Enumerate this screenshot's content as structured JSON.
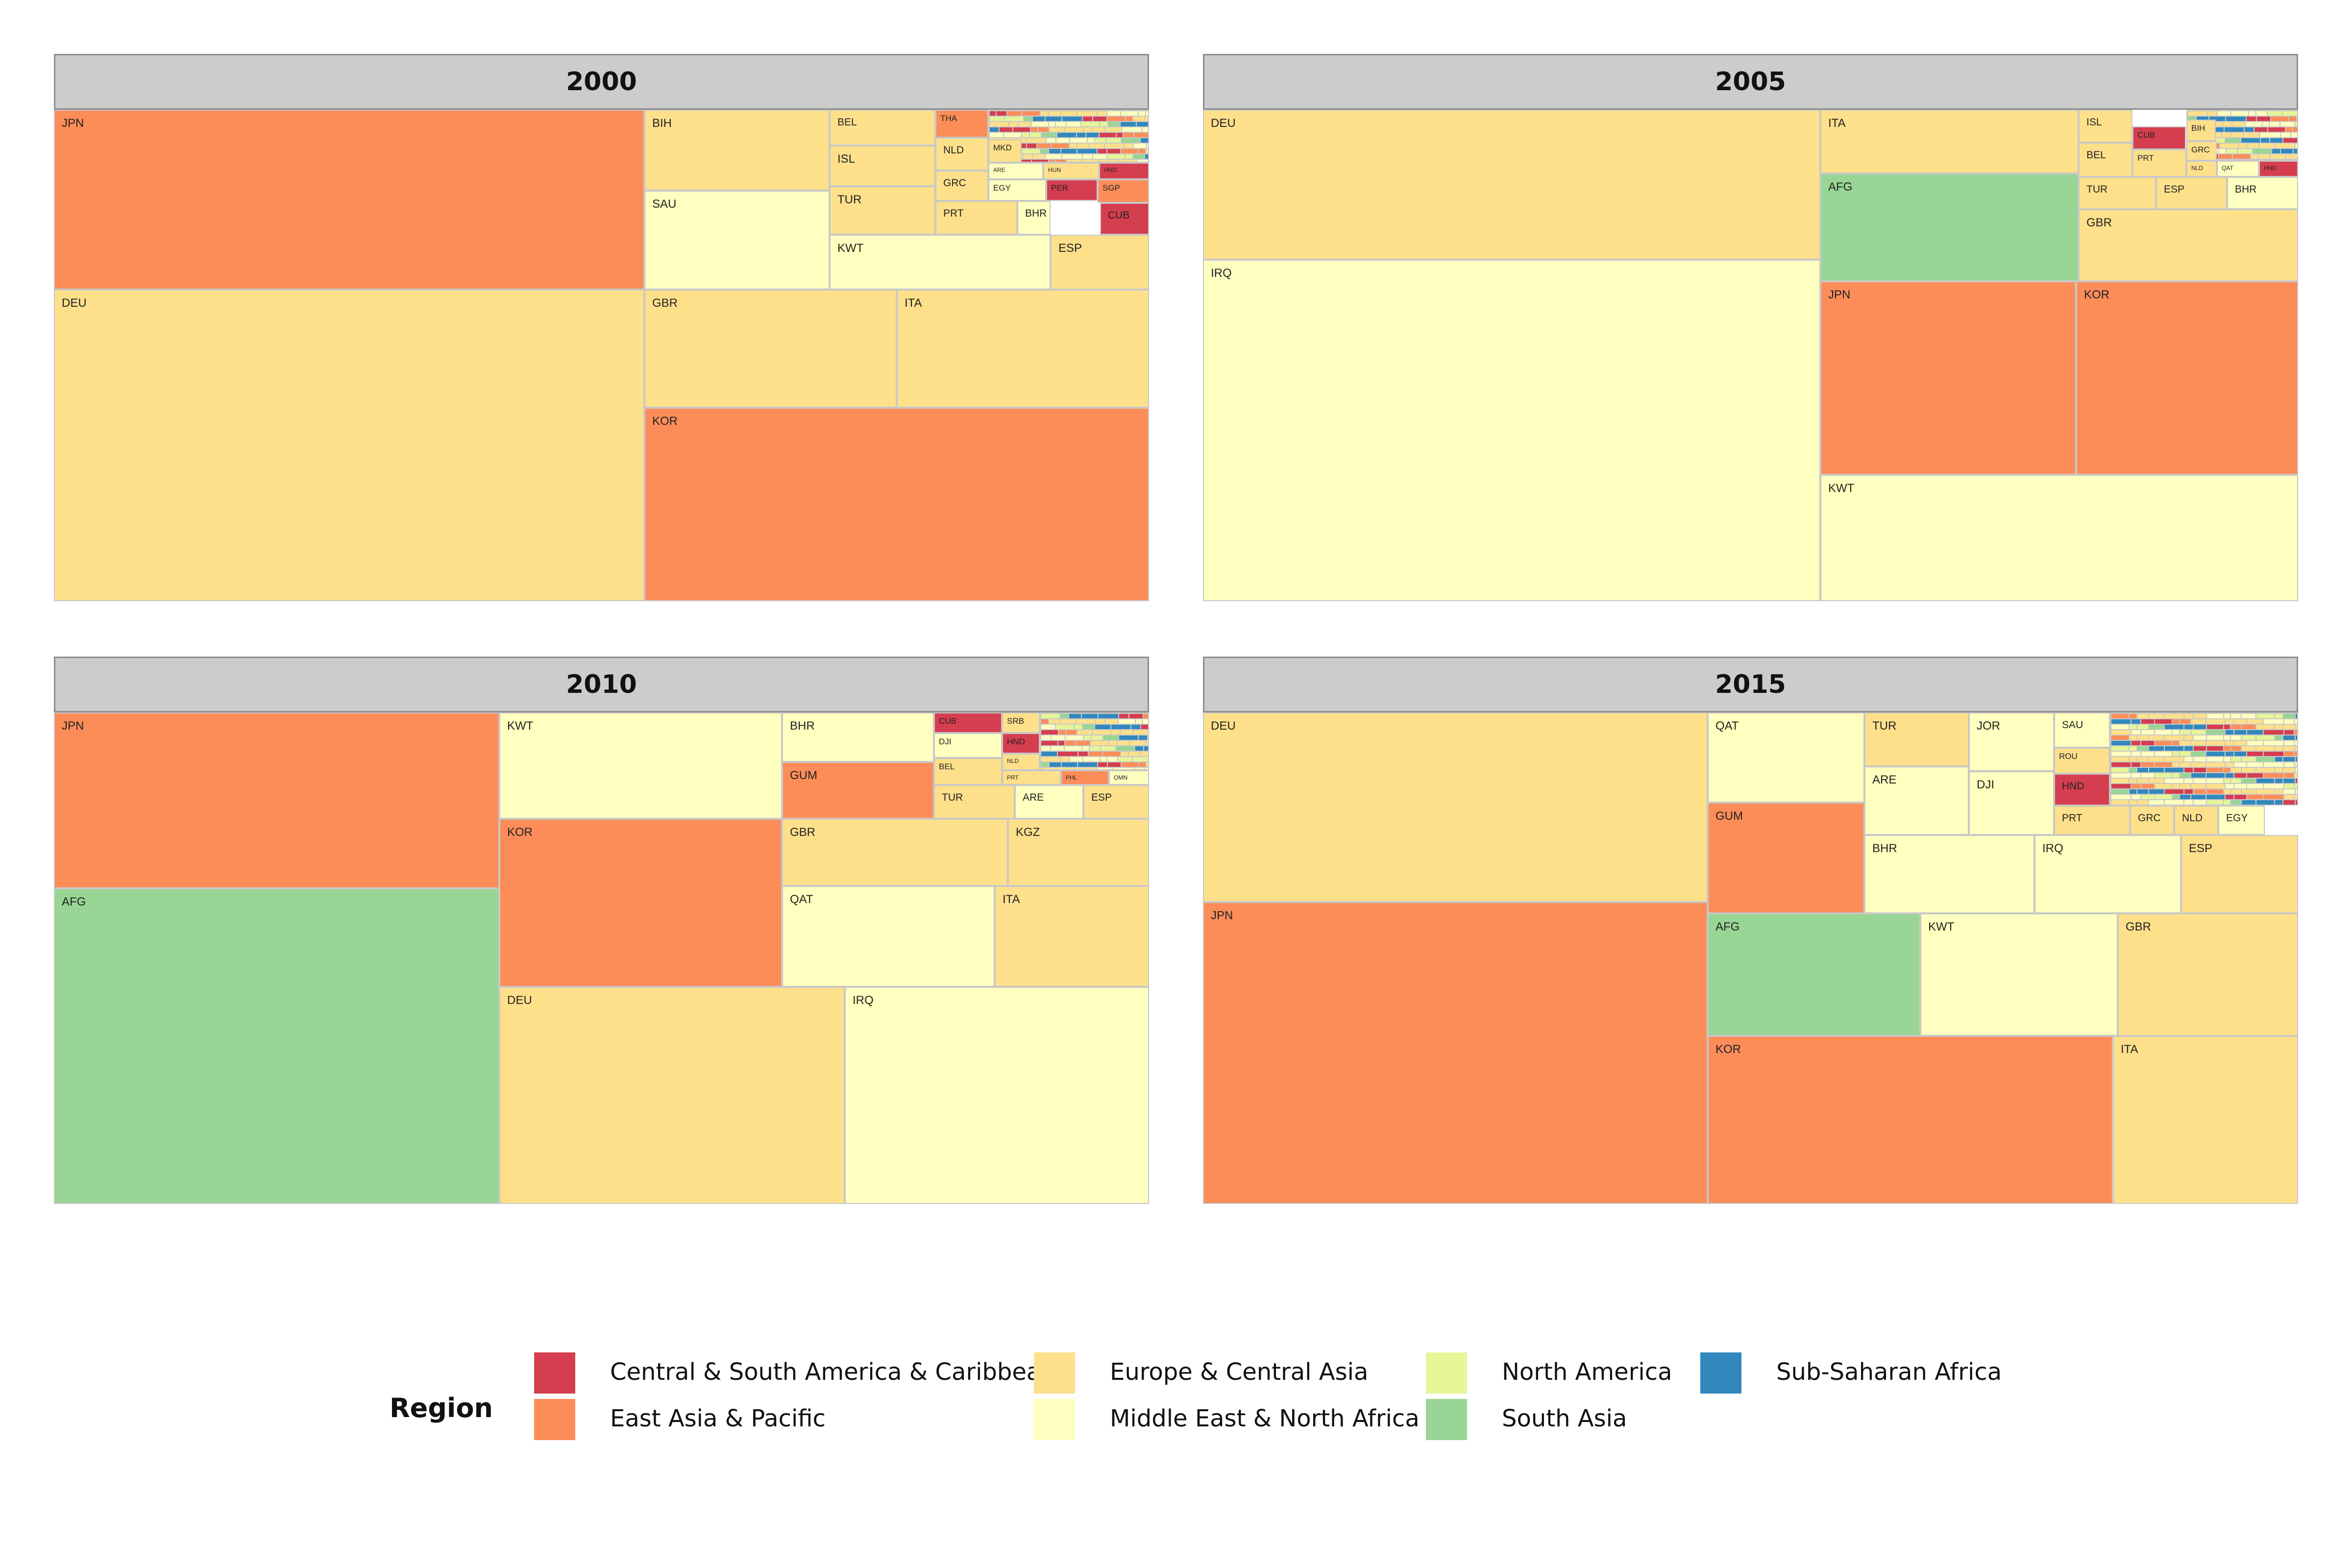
{
  "chart_data": {
    "type": "treemap",
    "legend": {
      "title": "Region",
      "position": "bottom",
      "entries": [
        {
          "region": "Central & South America & Caribbean",
          "color": "#d53e4f"
        },
        {
          "region": "East Asia & Pacific",
          "color": "#fc8d59"
        },
        {
          "region": "Europe & Central Asia",
          "color": "#fee08b"
        },
        {
          "region": "Middle East & North Africa",
          "color": "#ffffbf"
        },
        {
          "region": "North America",
          "color": "#e6f598"
        },
        {
          "region": "South Asia",
          "color": "#99d594"
        },
        {
          "region": "Sub-Saharan Africa",
          "color": "#3288bd"
        }
      ]
    },
    "panels": [
      {
        "year": "2000",
        "tiles": [
          {
            "country": "JPN",
            "region": "East Asia & Pacific",
            "share": 0.197
          },
          {
            "country": "DEU",
            "region": "Europe & Central Asia",
            "share": 0.341
          },
          {
            "country": "BIH",
            "region": "Europe & Central Asia",
            "share": 0.028
          },
          {
            "country": "SAU",
            "region": "Middle East & North Africa",
            "share": 0.035
          },
          {
            "country": "BEL",
            "region": "Europe & Central Asia",
            "share": 0.012
          },
          {
            "country": "ISL",
            "region": "Europe & Central Asia",
            "share": 0.012
          },
          {
            "country": "TUR",
            "region": "Europe & Central Asia",
            "share": 0.013
          },
          {
            "country": "KWT",
            "region": "Middle East & North Africa",
            "share": 0.018
          },
          {
            "country": "THA",
            "region": "East Asia & Pacific",
            "share": 0.003
          },
          {
            "country": "NLD",
            "region": "Europe & Central Asia",
            "share": 0.004
          },
          {
            "country": "GRC",
            "region": "Europe & Central Asia",
            "share": 0.004
          },
          {
            "country": "PRT",
            "region": "Europe & Central Asia",
            "share": 0.004
          },
          {
            "country": "BHR",
            "region": "Middle East & North Africa",
            "share": 0.004
          },
          {
            "country": "ESP",
            "region": "Europe & Central Asia",
            "share": 0.008
          },
          {
            "country": "CUB",
            "region": "Central & South America & Caribbean",
            "share": 0.004
          },
          {
            "country": "MKD",
            "region": "Europe & Central Asia",
            "share": 0.002
          },
          {
            "country": "ARE",
            "region": "Middle East & North Africa",
            "share": 0.001
          },
          {
            "country": "HUN",
            "region": "Europe & Central Asia",
            "share": 0.001
          },
          {
            "country": "HND",
            "region": "Central & South America & Caribbean",
            "share": 0.001
          },
          {
            "country": "EGY",
            "region": "Middle East & North Africa",
            "share": 0.002
          },
          {
            "country": "PER",
            "region": "Central & South America & Caribbean",
            "share": 0.002
          },
          {
            "country": "SGP",
            "region": "East Asia & Pacific",
            "share": 0.002
          },
          {
            "country": "GBR",
            "region": "Europe & Central Asia",
            "share": 0.058
          },
          {
            "country": "ITA",
            "region": "Europe & Central Asia",
            "share": 0.058
          },
          {
            "country": "KOR",
            "region": "East Asia & Pacific",
            "share": 0.154
          }
        ]
      },
      {
        "year": "2005",
        "tiles": [
          {
            "country": "DEU",
            "region": "Europe & Central Asia",
            "share": 0.175
          },
          {
            "country": "IRQ",
            "region": "Middle East & North Africa",
            "share": 0.398
          },
          {
            "country": "ITA",
            "region": "Europe & Central Asia",
            "share": 0.03
          },
          {
            "country": "AFG",
            "region": "South Asia",
            "share": 0.052
          },
          {
            "country": "ISL",
            "region": "Europe & Central Asia",
            "share": 0.004
          },
          {
            "country": "BEL",
            "region": "Europe & Central Asia",
            "share": 0.005
          },
          {
            "country": "CUB",
            "region": "Central & South America & Caribbean",
            "share": 0.002
          },
          {
            "country": "PRT",
            "region": "Europe & Central Asia",
            "share": 0.002
          },
          {
            "country": "BIH",
            "region": "Europe & Central Asia",
            "share": 0.001
          },
          {
            "country": "GRC",
            "region": "Europe & Central Asia",
            "share": 0.001
          },
          {
            "country": "NLD",
            "region": "Europe & Central Asia",
            "share": 0.001
          },
          {
            "country": "QAT",
            "region": "Middle East & North Africa",
            "share": 0.001
          },
          {
            "country": "HND",
            "region": "Central & South America & Caribbean",
            "share": 0.001
          },
          {
            "country": "TUR",
            "region": "Europe & Central Asia",
            "share": 0.004
          },
          {
            "country": "ESP",
            "region": "Europe & Central Asia",
            "share": 0.004
          },
          {
            "country": "BHR",
            "region": "Middle East & North Africa",
            "share": 0.004
          },
          {
            "country": "GBR",
            "region": "Europe & Central Asia",
            "share": 0.012
          },
          {
            "country": "JPN",
            "region": "East Asia & Pacific",
            "share": 0.095
          },
          {
            "country": "KOR",
            "region": "East Asia & Pacific",
            "share": 0.083
          },
          {
            "country": "KWT",
            "region": "Middle East & North Africa",
            "share": 0.103
          }
        ]
      },
      {
        "year": "2010",
        "tiles": [
          {
            "country": "JPN",
            "region": "East Asia & Pacific",
            "share": 0.131
          },
          {
            "country": "AFG",
            "region": "South Asia",
            "share": 0.277
          },
          {
            "country": "KWT",
            "region": "Middle East & North Africa",
            "share": 0.05
          },
          {
            "country": "KOR",
            "region": "East Asia & Pacific",
            "share": 0.079
          },
          {
            "country": "BHR",
            "region": "Middle East & North Africa",
            "share": 0.015
          },
          {
            "country": "GUM",
            "region": "East Asia & Pacific",
            "share": 0.016
          },
          {
            "country": "CUB",
            "region": "Central & South America & Caribbean",
            "share": 0.002
          },
          {
            "country": "DJI",
            "region": "Middle East & North Africa",
            "share": 0.002
          },
          {
            "country": "BEL",
            "region": "Europe & Central Asia",
            "share": 0.002
          },
          {
            "country": "TUR",
            "region": "Europe & Central Asia",
            "share": 0.002
          },
          {
            "country": "ARE",
            "region": "Middle East & North Africa",
            "share": 0.002
          },
          {
            "country": "ESP",
            "region": "Europe & Central Asia",
            "share": 0.002
          },
          {
            "country": "SRB",
            "region": "Europe & Central Asia",
            "share": 0.001
          },
          {
            "country": "HND",
            "region": "Central & South America & Caribbean",
            "share": 0.001
          },
          {
            "country": "NLD",
            "region": "Europe & Central Asia",
            "share": 0.001
          },
          {
            "country": "PRT",
            "region": "Europe & Central Asia",
            "share": 0.001
          },
          {
            "country": "PHL",
            "region": "East Asia & Pacific",
            "share": 0.001
          },
          {
            "country": "OMN",
            "region": "Middle East & North Africa",
            "share": 0.001
          },
          {
            "country": "GBR",
            "region": "Europe & Central Asia",
            "share": 0.022
          },
          {
            "country": "KGZ",
            "region": "Europe & Central Asia",
            "share": 0.015
          },
          {
            "country": "QAT",
            "region": "Middle East & North Africa",
            "share": 0.031
          },
          {
            "country": "ITA",
            "region": "Europe & Central Asia",
            "share": 0.023
          },
          {
            "country": "DEU",
            "region": "Europe & Central Asia",
            "share": 0.096
          },
          {
            "country": "IRQ",
            "region": "Middle East & North Africa",
            "share": 0.085
          }
        ]
      },
      {
        "year": "2015",
        "tiles": [
          {
            "country": "DEU",
            "region": "Europe & Central Asia",
            "share": 0.176
          },
          {
            "country": "JPN",
            "region": "East Asia & Pacific",
            "share": 0.272
          },
          {
            "country": "QAT",
            "region": "Middle East & North Africa",
            "share": 0.025
          },
          {
            "country": "GUM",
            "region": "East Asia & Pacific",
            "share": 0.03
          },
          {
            "country": "TUR",
            "region": "Europe & Central Asia",
            "share": 0.011
          },
          {
            "country": "ARE",
            "region": "Middle East & North Africa",
            "share": 0.012
          },
          {
            "country": "JOR",
            "region": "Middle East & North Africa",
            "share": 0.008
          },
          {
            "country": "DJI",
            "region": "Middle East & North Africa",
            "share": 0.009
          },
          {
            "country": "SAU",
            "region": "Middle East & North Africa",
            "share": 0.004
          },
          {
            "country": "ROU",
            "region": "Europe & Central Asia",
            "share": 0.004
          },
          {
            "country": "HND",
            "region": "Central & South America & Caribbean",
            "share": 0.004
          },
          {
            "country": "PRT",
            "region": "Europe & Central Asia",
            "share": 0.002
          },
          {
            "country": "GRC",
            "region": "Europe & Central Asia",
            "share": 0.002
          },
          {
            "country": "NLD",
            "region": "Europe & Central Asia",
            "share": 0.002
          },
          {
            "country": "EGY",
            "region": "Middle East & North Africa",
            "share": 0.002
          },
          {
            "country": "BEL",
            "region": "Europe & Central Asia",
            "share": 0.005
          },
          {
            "country": "AUS",
            "region": "East Asia & Pacific",
            "share": 0.005
          },
          {
            "country": "CUB",
            "region": "Central & South America & Caribbean",
            "share": 0.003
          },
          {
            "country": "BHR",
            "region": "Middle East & North Africa",
            "share": 0.02
          },
          {
            "country": "IRQ",
            "region": "Middle East & North Africa",
            "share": 0.018
          },
          {
            "country": "ESP",
            "region": "Europe & Central Asia",
            "share": 0.015
          },
          {
            "country": "AFG",
            "region": "South Asia",
            "share": 0.04
          },
          {
            "country": "KWT",
            "region": "Middle East & North Africa",
            "share": 0.037
          },
          {
            "country": "GBR",
            "region": "Europe & Central Asia",
            "share": 0.034
          },
          {
            "country": "KOR",
            "region": "East Asia & Pacific",
            "share": 0.103
          },
          {
            "country": "ITA",
            "region": "Europe & Central Asia",
            "share": 0.047
          }
        ]
      }
    ]
  }
}
